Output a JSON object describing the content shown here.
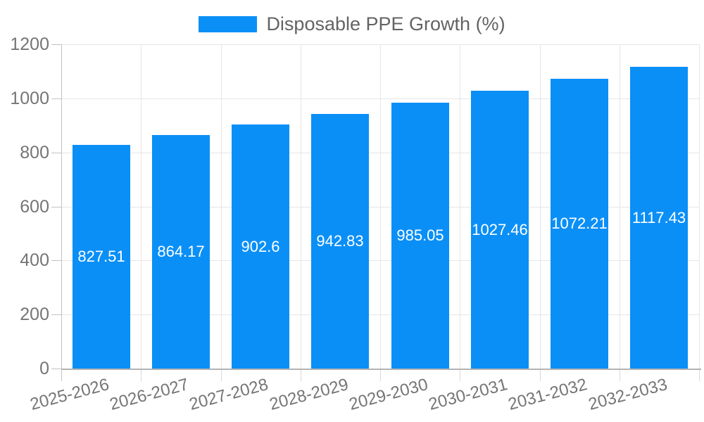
{
  "legend": {
    "label": "Disposable PPE Growth (%)"
  },
  "colors": {
    "bar": "#0a8ff7",
    "grid": "#e6e6e6",
    "axis_line_y": "#c2c2c2",
    "axis_line_x": "#b3b3b3",
    "axis_text": "#757575",
    "title_text": "#636363",
    "value_text": "#ffffff",
    "background": "#ffffff"
  },
  "chart_data": {
    "type": "bar",
    "title": "Disposable PPE Growth (%)",
    "categories": [
      "2025-2026",
      "2026-2027",
      "2027-2028",
      "2028-2029",
      "2029-2030",
      "2030-2031",
      "2031-2032",
      "2032-2033"
    ],
    "values": [
      827.51,
      864.17,
      902.6,
      942.83,
      985.05,
      1027.46,
      1072.21,
      1117.43
    ],
    "value_labels": [
      "827.51",
      "864.17",
      "902.6",
      "942.83",
      "985.05",
      "1027.46",
      "1072.21",
      "1117.43"
    ],
    "xlabel": "",
    "ylabel": "",
    "ylim": [
      0,
      1200
    ],
    "yticks": [
      0,
      200,
      400,
      600,
      800,
      1000,
      1200
    ],
    "grid": true,
    "legend_position": "top",
    "value_labels_position": "center-inside",
    "x_label_rotation_deg": -15
  }
}
